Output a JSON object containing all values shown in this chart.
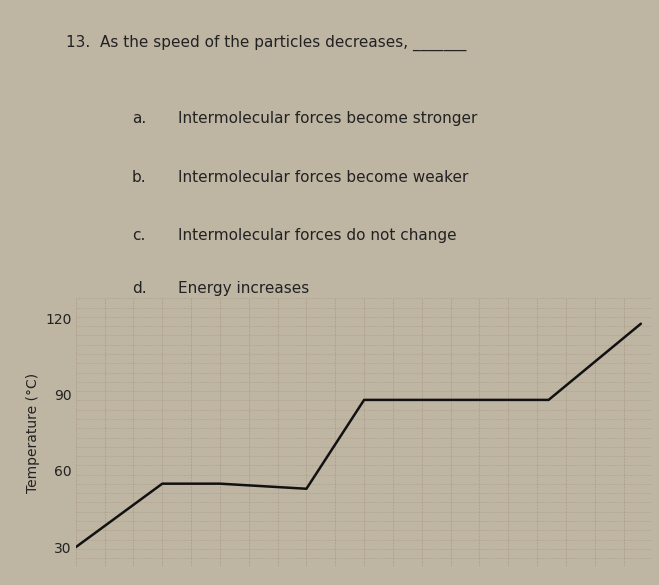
{
  "question_number": "13.",
  "question_text": "As the speed of the particles decreases, _______",
  "choices": [
    {
      "label": "a.",
      "text": "Intermolecular forces become stronger"
    },
    {
      "label": "b.",
      "text": "Intermolecular forces become weaker"
    },
    {
      "label": "c.",
      "text": "Intermolecular forces do not change"
    },
    {
      "label": "d.",
      "text": "Energy increases"
    }
  ],
  "ylabel": "Temperature (°C)",
  "yticks": [
    30,
    60,
    90,
    120
  ],
  "ylim": [
    22,
    128
  ],
  "xlim": [
    0,
    10
  ],
  "line_x": [
    0,
    1.5,
    2.5,
    4.0,
    5.0,
    7.0,
    8.2,
    9.8
  ],
  "line_y": [
    30,
    55,
    55,
    53,
    88,
    88,
    88,
    118
  ],
  "line_color": "#111111",
  "line_width": 1.8,
  "bg_color": "#bfb5a3",
  "plot_bg_color": "#bfb5a3",
  "grid_color": "#8B7355",
  "text_color": "#222222",
  "question_fontsize": 11,
  "choice_fontsize": 11,
  "axis_fontsize": 10,
  "n_vgrid": 20,
  "n_hgrid": 4
}
